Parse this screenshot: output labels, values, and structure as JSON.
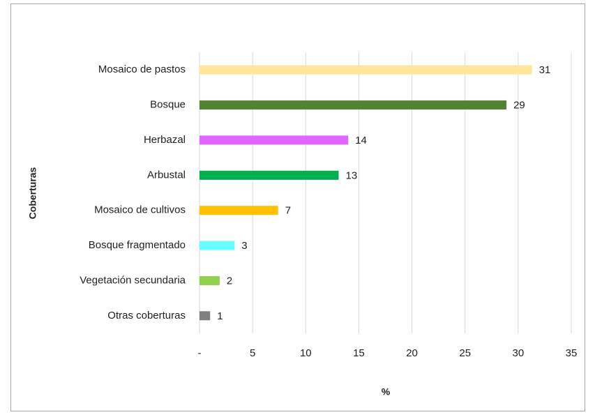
{
  "chart_data": {
    "type": "bar",
    "orientation": "horizontal",
    "y_axis_label": "Coberturas",
    "x_axis_label": "%",
    "categories": [
      "Mosaico de pastos",
      "Bosque",
      "Herbazal",
      "Arbustal",
      "Mosaico de cultivos",
      "Bosque fragmentado",
      "Vegetación secundaria",
      "Otras coberturas"
    ],
    "values": [
      31.3,
      28.9,
      14.0,
      13.1,
      7.4,
      3.3,
      1.9,
      1.0
    ],
    "value_labels": [
      "31",
      "29",
      "14",
      "13",
      "7",
      "3",
      "2",
      "1"
    ],
    "colors": [
      "#ffe699",
      "#548235",
      "#e066ff",
      "#00b050",
      "#ffc000",
      "#66ffff",
      "#92d050",
      "#808080"
    ],
    "xlim": [
      0,
      35
    ],
    "xticks": [
      {
        "value": 0,
        "label": "-"
      },
      5,
      10,
      15,
      20,
      25,
      30,
      35
    ],
    "grid": true
  }
}
